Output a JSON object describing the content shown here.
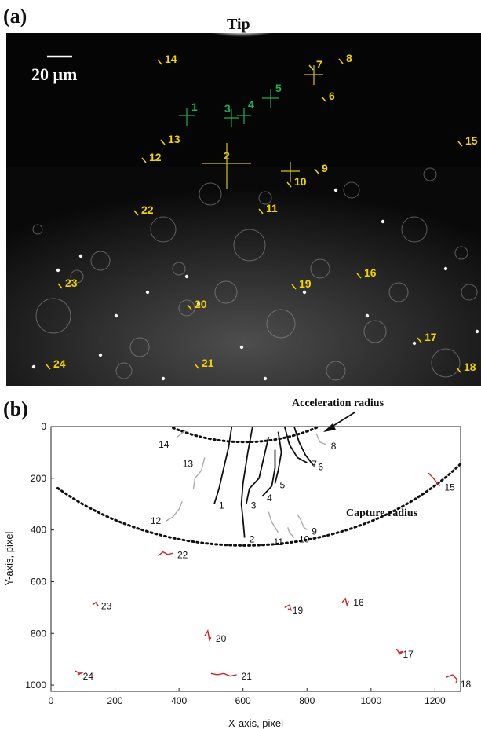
{
  "panel_a": {
    "label": "(a)",
    "tip_label": "Tip",
    "scale_bar_label": "20 μm",
    "particle_labels": [
      {
        "id": "1",
        "color": "#1fae5a"
      },
      {
        "id": "2",
        "color": "#d8c11a"
      },
      {
        "id": "3",
        "color": "#1fae5a"
      },
      {
        "id": "4",
        "color": "#1fae5a"
      },
      {
        "id": "5",
        "color": "#1fae5a"
      },
      {
        "id": "6",
        "color": "#f2d400"
      },
      {
        "id": "7",
        "color": "#f2d400"
      },
      {
        "id": "8",
        "color": "#f2d400"
      },
      {
        "id": "9",
        "color": "#f2d400"
      },
      {
        "id": "10",
        "color": "#f2d400"
      },
      {
        "id": "11",
        "color": "#f2d400"
      },
      {
        "id": "12",
        "color": "#f2d400"
      },
      {
        "id": "13",
        "color": "#f2d400"
      },
      {
        "id": "14",
        "color": "#f2d400"
      },
      {
        "id": "15",
        "color": "#f2d400"
      },
      {
        "id": "16",
        "color": "#f2d400"
      },
      {
        "id": "17",
        "color": "#f2d400"
      },
      {
        "id": "18",
        "color": "#f2d400"
      },
      {
        "id": "19",
        "color": "#f2d400"
      },
      {
        "id": "20",
        "color": "#f2d400"
      },
      {
        "id": "21",
        "color": "#f2d400"
      },
      {
        "id": "22",
        "color": "#f2d400"
      },
      {
        "id": "23",
        "color": "#f2d400"
      },
      {
        "id": "24",
        "color": "#f2d400"
      }
    ]
  },
  "panel_b": {
    "label": "(b)",
    "annotation_acceleration": "Acceleration radius",
    "annotation_capture": "Capture radius"
  },
  "chart_data": {
    "type": "line",
    "xlabel": "X-axis, pixel",
    "ylabel": "Y-axis, pixel",
    "xlim": [
      0,
      1280
    ],
    "ylim": [
      0,
      1024
    ],
    "y_inverted": true,
    "x_ticks": [
      0,
      200,
      400,
      600,
      800,
      1000,
      1200
    ],
    "y_ticks": [
      0,
      200,
      400,
      600,
      800,
      1000
    ],
    "tip_center": [
      605,
      -420
    ],
    "acceleration_radius": 480,
    "capture_radius": 880,
    "trajectory_colors": {
      "captured": "#111111",
      "approaching": "#aaaaaa",
      "far": "#d42020"
    },
    "trajectories": [
      {
        "id": "1",
        "class": "captured",
        "points": [
          [
            565,
            0
          ],
          [
            555,
            80
          ],
          [
            540,
            160
          ],
          [
            525,
            240
          ],
          [
            510,
            300
          ]
        ]
      },
      {
        "id": "2",
        "class": "captured",
        "points": [
          [
            630,
            0
          ],
          [
            615,
            100
          ],
          [
            600,
            220
          ],
          [
            595,
            300
          ],
          [
            600,
            360
          ],
          [
            605,
            430
          ]
        ]
      },
      {
        "id": "3",
        "class": "captured",
        "points": [
          [
            680,
            40
          ],
          [
            665,
            120
          ],
          [
            650,
            200
          ],
          [
            620,
            240
          ],
          [
            610,
            300
          ]
        ]
      },
      {
        "id": "4",
        "class": "captured",
        "points": [
          [
            700,
            90
          ],
          [
            700,
            160
          ],
          [
            690,
            230
          ],
          [
            660,
            270
          ]
        ]
      },
      {
        "id": "5",
        "class": "captured",
        "points": [
          [
            710,
            20
          ],
          [
            720,
            100
          ],
          [
            710,
            170
          ],
          [
            700,
            220
          ]
        ]
      },
      {
        "id": "6",
        "class": "captured",
        "points": [
          [
            760,
            0
          ],
          [
            775,
            60
          ],
          [
            795,
            110
          ],
          [
            820,
            150
          ]
        ]
      },
      {
        "id": "7",
        "class": "captured",
        "points": [
          [
            730,
            0
          ],
          [
            745,
            70
          ],
          [
            770,
            120
          ],
          [
            800,
            140
          ]
        ]
      },
      {
        "id": "8",
        "class": "approaching",
        "points": [
          [
            830,
            30
          ],
          [
            840,
            60
          ],
          [
            860,
            70
          ]
        ]
      },
      {
        "id": "9",
        "class": "approaching",
        "points": [
          [
            770,
            340
          ],
          [
            780,
            360
          ],
          [
            790,
            390
          ],
          [
            800,
            400
          ]
        ]
      },
      {
        "id": "10",
        "class": "approaching",
        "points": [
          [
            740,
            390
          ],
          [
            745,
            410
          ],
          [
            760,
            430
          ]
        ]
      },
      {
        "id": "11",
        "class": "approaching",
        "points": [
          [
            680,
            330
          ],
          [
            690,
            370
          ],
          [
            700,
            390
          ],
          [
            710,
            410
          ]
        ]
      },
      {
        "id": "12",
        "class": "approaching",
        "points": [
          [
            410,
            290
          ],
          [
            400,
            320
          ],
          [
            380,
            350
          ],
          [
            360,
            365
          ]
        ]
      },
      {
        "id": "13",
        "class": "approaching",
        "points": [
          [
            480,
            120
          ],
          [
            470,
            170
          ],
          [
            450,
            200
          ],
          [
            445,
            240
          ]
        ]
      },
      {
        "id": "14",
        "class": "approaching",
        "points": [
          [
            395,
            40
          ],
          [
            410,
            25
          ],
          [
            420,
            15
          ]
        ]
      },
      {
        "id": "15",
        "class": "far",
        "points": [
          [
            1180,
            180
          ],
          [
            1195,
            200
          ],
          [
            1205,
            215
          ],
          [
            1215,
            230
          ]
        ]
      },
      {
        "id": "16",
        "class": "far",
        "points": [
          [
            910,
            680
          ],
          [
            920,
            665
          ],
          [
            925,
            690
          ],
          [
            930,
            675
          ]
        ]
      },
      {
        "id": "17",
        "class": "far",
        "points": [
          [
            1080,
            860
          ],
          [
            1090,
            880
          ],
          [
            1100,
            870
          ],
          [
            1085,
            875
          ]
        ]
      },
      {
        "id": "18",
        "class": "far",
        "points": [
          [
            1235,
            970
          ],
          [
            1255,
            960
          ],
          [
            1270,
            980
          ],
          [
            1265,
            990
          ]
        ]
      },
      {
        "id": "19",
        "class": "far",
        "points": [
          [
            730,
            700
          ],
          [
            745,
            690
          ],
          [
            750,
            710
          ],
          [
            740,
            705
          ]
        ]
      },
      {
        "id": "20",
        "class": "far",
        "points": [
          [
            480,
            810
          ],
          [
            490,
            790
          ],
          [
            495,
            825
          ],
          [
            500,
            815
          ]
        ]
      },
      {
        "id": "21",
        "class": "far",
        "points": [
          [
            500,
            955
          ],
          [
            520,
            960
          ],
          [
            540,
            955
          ],
          [
            560,
            965
          ],
          [
            580,
            960
          ]
        ]
      },
      {
        "id": "22",
        "class": "far",
        "points": [
          [
            335,
            500
          ],
          [
            350,
            485
          ],
          [
            365,
            495
          ],
          [
            380,
            490
          ]
        ]
      },
      {
        "id": "23",
        "class": "far",
        "points": [
          [
            130,
            690
          ],
          [
            140,
            680
          ],
          [
            148,
            695
          ],
          [
            142,
            688
          ]
        ]
      },
      {
        "id": "24",
        "class": "far",
        "points": [
          [
            75,
            945
          ],
          [
            90,
            955
          ],
          [
            100,
            950
          ],
          [
            85,
            960
          ]
        ]
      }
    ]
  }
}
